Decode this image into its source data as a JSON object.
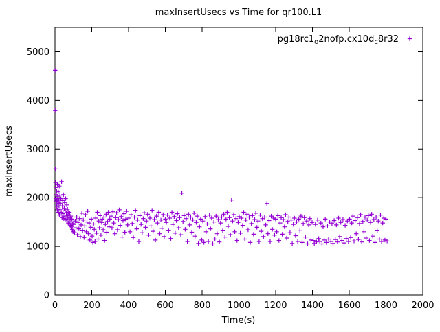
{
  "title": "maxInsertUsecs vs Time for qr100.L1",
  "legend": {
    "label": "pg18rc1_o2nofp.cx10d_c8r32",
    "label_parts": [
      {
        "t": "pg18rc1",
        "sub": false
      },
      {
        "t": "o",
        "sub": true
      },
      {
        "t": "2nofp.cx10d",
        "sub": false
      },
      {
        "t": "c",
        "sub": true
      },
      {
        "t": "8r32",
        "sub": false
      }
    ],
    "marker": "+",
    "marker_color": "#9400D3"
  },
  "chart_data": {
    "type": "scatter",
    "title": "maxInsertUsecs vs Time for qr100.L1",
    "xlabel": "Time(s)",
    "ylabel": "maxInsertUsecs",
    "xlim": [
      0,
      2000
    ],
    "ylim": [
      0,
      5500
    ],
    "xticks": [
      0,
      200,
      400,
      600,
      800,
      1000,
      1200,
      1400,
      1600,
      1800,
      2000
    ],
    "yticks": [
      0,
      1000,
      2000,
      3000,
      4000,
      5000
    ],
    "grid": false,
    "legend_position": "top-right",
    "series": [
      {
        "name": "pg18rc1_o2nofp.cx10d_c8r32",
        "color": "#9400D3",
        "marker": "+"
      }
    ],
    "points": [
      [
        1,
        4620
      ],
      [
        1,
        3790
      ],
      [
        2,
        2590
      ],
      [
        3,
        2310
      ],
      [
        4,
        1980
      ],
      [
        5,
        2210
      ],
      [
        6,
        1870
      ],
      [
        7,
        2060
      ],
      [
        8,
        1930
      ],
      [
        9,
        2140
      ],
      [
        10,
        1820
      ],
      [
        12,
        1960
      ],
      [
        13,
        2280
      ],
      [
        14,
        1750
      ],
      [
        15,
        2030
      ],
      [
        16,
        1890
      ],
      [
        18,
        2120
      ],
      [
        19,
        1700
      ],
      [
        20,
        1950
      ],
      [
        22,
        1830
      ],
      [
        23,
        2240
      ],
      [
        24,
        1640
      ],
      [
        26,
        1910
      ],
      [
        27,
        2050
      ],
      [
        28,
        1760
      ],
      [
        30,
        1880
      ],
      [
        32,
        1980
      ],
      [
        34,
        1700
      ],
      [
        36,
        2330
      ],
      [
        38,
        1590
      ],
      [
        40,
        1830
      ],
      [
        42,
        1940
      ],
      [
        44,
        1670
      ],
      [
        46,
        2060
      ],
      [
        48,
        1570
      ],
      [
        50,
        1780
      ],
      [
        52,
        1900
      ],
      [
        54,
        1620
      ],
      [
        56,
        1730
      ],
      [
        58,
        1980
      ],
      [
        60,
        1560
      ],
      [
        62,
        1690
      ],
      [
        64,
        1850
      ],
      [
        66,
        1540
      ],
      [
        68,
        1760
      ],
      [
        70,
        1630
      ],
      [
        72,
        1480
      ],
      [
        74,
        1700
      ],
      [
        76,
        1580
      ],
      [
        78,
        1460
      ],
      [
        80,
        1690
      ],
      [
        82,
        1550
      ],
      [
        84,
        1430
      ],
      [
        86,
        1620
      ],
      [
        88,
        1500
      ],
      [
        90,
        1400
      ],
      [
        92,
        1560
      ],
      [
        94,
        1350
      ],
      [
        96,
        1470
      ],
      [
        98,
        1300
      ],
      [
        102,
        1450
      ],
      [
        106,
        1280
      ],
      [
        110,
        1520
      ],
      [
        114,
        1380
      ],
      [
        118,
        1600
      ],
      [
        122,
        1240
      ],
      [
        126,
        1490
      ],
      [
        130,
        1360
      ],
      [
        134,
        1570
      ],
      [
        138,
        1200
      ],
      [
        142,
        1440
      ],
      [
        146,
        1680
      ],
      [
        150,
        1320
      ],
      [
        154,
        1540
      ],
      [
        158,
        1180
      ],
      [
        162,
        1420
      ],
      [
        166,
        1650
      ],
      [
        170,
        1300
      ],
      [
        174,
        1500
      ],
      [
        178,
        1720
      ],
      [
        182,
        1260
      ],
      [
        186,
        1480
      ],
      [
        190,
        1130
      ],
      [
        194,
        1390
      ],
      [
        198,
        1560
      ],
      [
        202,
        1210
      ],
      [
        206,
        1080
      ],
      [
        210,
        1460
      ],
      [
        214,
        1350
      ],
      [
        218,
        1100
      ],
      [
        222,
        1580
      ],
      [
        226,
        1270
      ],
      [
        230,
        1700
      ],
      [
        234,
        1150
      ],
      [
        238,
        1520
      ],
      [
        242,
        1380
      ],
      [
        246,
        1630
      ],
      [
        250,
        1230
      ],
      [
        254,
        1490
      ],
      [
        258,
        1560
      ],
      [
        262,
        1340
      ],
      [
        266,
        1600
      ],
      [
        270,
        1120
      ],
      [
        274,
        1450
      ],
      [
        278,
        1660
      ],
      [
        282,
        1290
      ],
      [
        286,
        1510
      ],
      [
        290,
        1700
      ],
      [
        294,
        1400
      ],
      [
        298,
        1560
      ],
      [
        305,
        1620
      ],
      [
        310,
        1380
      ],
      [
        315,
        1710
      ],
      [
        320,
        1480
      ],
      [
        325,
        1260
      ],
      [
        330,
        1590
      ],
      [
        335,
        1690
      ],
      [
        340,
        1340
      ],
      [
        345,
        1550
      ],
      [
        350,
        1750
      ],
      [
        355,
        1430
      ],
      [
        360,
        1610
      ],
      [
        365,
        1190
      ],
      [
        370,
        1530
      ],
      [
        375,
        1670
      ],
      [
        380,
        1290
      ],
      [
        385,
        1560
      ],
      [
        390,
        1720
      ],
      [
        395,
        1440
      ],
      [
        402,
        1580
      ],
      [
        408,
        1300
      ],
      [
        414,
        1650
      ],
      [
        420,
        1470
      ],
      [
        426,
        1180
      ],
      [
        432,
        1600
      ],
      [
        438,
        1740
      ],
      [
        444,
        1360
      ],
      [
        450,
        1540
      ],
      [
        456,
        1100
      ],
      [
        462,
        1630
      ],
      [
        468,
        1450
      ],
      [
        474,
        1280
      ],
      [
        480,
        1570
      ],
      [
        486,
        1690
      ],
      [
        492,
        1390
      ],
      [
        498,
        1520
      ],
      [
        504,
        1660
      ],
      [
        510,
        1230
      ],
      [
        516,
        1580
      ],
      [
        522,
        1420
      ],
      [
        528,
        1740
      ],
      [
        534,
        1310
      ],
      [
        540,
        1550
      ],
      [
        546,
        1130
      ],
      [
        552,
        1620
      ],
      [
        558,
        1480
      ],
      [
        564,
        1700
      ],
      [
        570,
        1260
      ],
      [
        576,
        1540
      ],
      [
        582,
        1370
      ],
      [
        588,
        1650
      ],
      [
        594,
        1200
      ],
      [
        600,
        1560
      ],
      [
        606,
        1490
      ],
      [
        612,
        1640
      ],
      [
        618,
        1320
      ],
      [
        624,
        1580
      ],
      [
        630,
        1160
      ],
      [
        636,
        1700
      ],
      [
        642,
        1450
      ],
      [
        648,
        1610
      ],
      [
        654,
        1270
      ],
      [
        660,
        1530
      ],
      [
        666,
        1670
      ],
      [
        672,
        1380
      ],
      [
        678,
        1590
      ],
      [
        684,
        1240
      ],
      [
        690,
        2090
      ],
      [
        696,
        1510
      ],
      [
        702,
        1630
      ],
      [
        708,
        1350
      ],
      [
        714,
        1570
      ],
      [
        720,
        1100
      ],
      [
        726,
        1660
      ],
      [
        732,
        1440
      ],
      [
        738,
        1600
      ],
      [
        744,
        1290
      ],
      [
        750,
        1540
      ],
      [
        756,
        1680
      ],
      [
        762,
        1210
      ],
      [
        768,
        1490
      ],
      [
        774,
        1620
      ],
      [
        780,
        1060
      ],
      [
        786,
        1400
      ],
      [
        792,
        1560
      ],
      [
        798,
        1130
      ],
      [
        804,
        1520
      ],
      [
        810,
        1080
      ],
      [
        816,
        1610
      ],
      [
        822,
        1300
      ],
      [
        828,
        1460
      ],
      [
        834,
        1100
      ],
      [
        840,
        1640
      ],
      [
        846,
        1360
      ],
      [
        852,
        1580
      ],
      [
        858,
        1050
      ],
      [
        864,
        1500
      ],
      [
        870,
        1150
      ],
      [
        876,
        1620
      ],
      [
        882,
        1260
      ],
      [
        888,
        1550
      ],
      [
        894,
        1090
      ],
      [
        900,
        1480
      ],
      [
        906,
        1600
      ],
      [
        912,
        1320
      ],
      [
        918,
        1660
      ],
      [
        924,
        1190
      ],
      [
        930,
        1560
      ],
      [
        936,
        1700
      ],
      [
        942,
        1410
      ],
      [
        948,
        1590
      ],
      [
        954,
        1240
      ],
      [
        960,
        1950
      ],
      [
        966,
        1520
      ],
      [
        972,
        1650
      ],
      [
        978,
        1300
      ],
      [
        984,
        1570
      ],
      [
        990,
        1120
      ],
      [
        996,
        1490
      ],
      [
        1002,
        1610
      ],
      [
        1008,
        1270
      ],
      [
        1014,
        1580
      ],
      [
        1020,
        1430
      ],
      [
        1026,
        1700
      ],
      [
        1032,
        1150
      ],
      [
        1038,
        1540
      ],
      [
        1044,
        1660
      ],
      [
        1050,
        1340
      ],
      [
        1056,
        1600
      ],
      [
        1062,
        1080
      ],
      [
        1068,
        1470
      ],
      [
        1074,
        1630
      ],
      [
        1080,
        1250
      ],
      [
        1086,
        1550
      ],
      [
        1092,
        1680
      ],
      [
        1098,
        1390
      ],
      [
        1104,
        1520
      ],
      [
        1110,
        1100
      ],
      [
        1116,
        1640
      ],
      [
        1122,
        1310
      ],
      [
        1128,
        1570
      ],
      [
        1134,
        1200
      ],
      [
        1140,
        1600
      ],
      [
        1146,
        1440
      ],
      [
        1152,
        1880
      ],
      [
        1158,
        1260
      ],
      [
        1164,
        1530
      ],
      [
        1170,
        1100
      ],
      [
        1176,
        1620
      ],
      [
        1182,
        1350
      ],
      [
        1188,
        1580
      ],
      [
        1194,
        1230
      ],
      [
        1200,
        1560
      ],
      [
        1206,
        1300
      ],
      [
        1212,
        1630
      ],
      [
        1218,
        1120
      ],
      [
        1224,
        1480
      ],
      [
        1230,
        1590
      ],
      [
        1236,
        1250
      ],
      [
        1242,
        1550
      ],
      [
        1248,
        1400
      ],
      [
        1254,
        1650
      ],
      [
        1260,
        1170
      ],
      [
        1266,
        1510
      ],
      [
        1272,
        1600
      ],
      [
        1278,
        1280
      ],
      [
        1284,
        1540
      ],
      [
        1290,
        1060
      ],
      [
        1296,
        1450
      ],
      [
        1302,
        1580
      ],
      [
        1308,
        1220
      ],
      [
        1314,
        1500
      ],
      [
        1320,
        1100
      ],
      [
        1326,
        1560
      ],
      [
        1332,
        1330
      ],
      [
        1338,
        1620
      ],
      [
        1344,
        1080
      ],
      [
        1350,
        1470
      ],
      [
        1356,
        1590
      ],
      [
        1362,
        1190
      ],
      [
        1368,
        1520
      ],
      [
        1374,
        1050
      ],
      [
        1380,
        1440
      ],
      [
        1386,
        1570
      ],
      [
        1392,
        1130
      ],
      [
        1398,
        1490
      ],
      [
        1404,
        1120
      ],
      [
        1410,
        1060
      ],
      [
        1416,
        1450
      ],
      [
        1422,
        1090
      ],
      [
        1428,
        1540
      ],
      [
        1434,
        1160
      ],
      [
        1440,
        1100
      ],
      [
        1446,
        1480
      ],
      [
        1452,
        1050
      ],
      [
        1458,
        1400
      ],
      [
        1464,
        1130
      ],
      [
        1470,
        1560
      ],
      [
        1476,
        1080
      ],
      [
        1482,
        1420
      ],
      [
        1488,
        1150
      ],
      [
        1494,
        1500
      ],
      [
        1500,
        1100
      ],
      [
        1506,
        1470
      ],
      [
        1512,
        1060
      ],
      [
        1518,
        1530
      ],
      [
        1524,
        1140
      ],
      [
        1530,
        1440
      ],
      [
        1536,
        1090
      ],
      [
        1542,
        1580
      ],
      [
        1548,
        1200
      ],
      [
        1554,
        1490
      ],
      [
        1560,
        1120
      ],
      [
        1566,
        1550
      ],
      [
        1572,
        1070
      ],
      [
        1578,
        1430
      ],
      [
        1584,
        1160
      ],
      [
        1590,
        1520
      ],
      [
        1596,
        1100
      ],
      [
        1602,
        1560
      ],
      [
        1608,
        1180
      ],
      [
        1614,
        1480
      ],
      [
        1620,
        1620
      ],
      [
        1626,
        1110
      ],
      [
        1632,
        1530
      ],
      [
        1638,
        1260
      ],
      [
        1644,
        1590
      ],
      [
        1650,
        1140
      ],
      [
        1656,
        1470
      ],
      [
        1662,
        1650
      ],
      [
        1668,
        1090
      ],
      [
        1674,
        1510
      ],
      [
        1680,
        1300
      ],
      [
        1686,
        1600
      ],
      [
        1692,
        1170
      ],
      [
        1698,
        1540
      ],
      [
        1704,
        1630
      ],
      [
        1710,
        1120
      ],
      [
        1716,
        1490
      ],
      [
        1722,
        1660
      ],
      [
        1728,
        1210
      ],
      [
        1734,
        1550
      ],
      [
        1740,
        1080
      ],
      [
        1746,
        1600
      ],
      [
        1752,
        1320
      ],
      [
        1758,
        1520
      ],
      [
        1764,
        1150
      ],
      [
        1770,
        1640
      ],
      [
        1776,
        1100
      ],
      [
        1782,
        1480
      ],
      [
        1788,
        1580
      ],
      [
        1794,
        1130
      ],
      [
        1800,
        1560
      ],
      [
        1806,
        1110
      ]
    ]
  }
}
